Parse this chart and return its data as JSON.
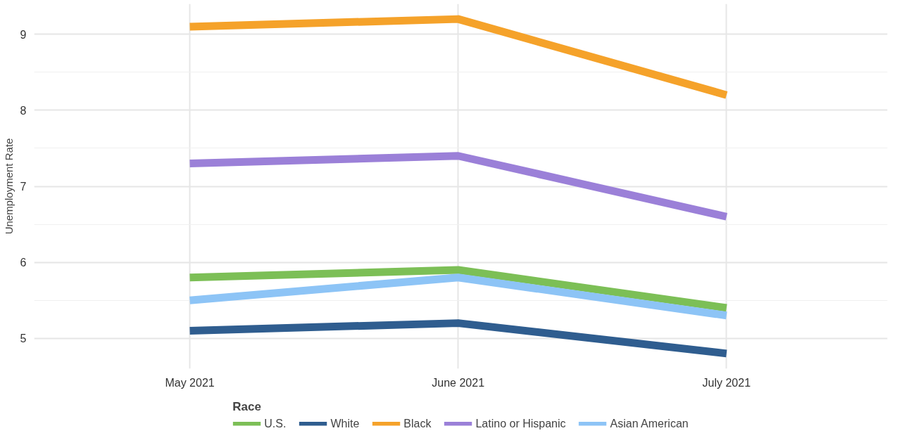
{
  "chart_data": {
    "type": "line",
    "ylabel": "Unemployment Rate",
    "legend_title": "Race",
    "categories": [
      "May 2021",
      "June 2021",
      "July 2021"
    ],
    "series": [
      {
        "name": "U.S.",
        "color": "#7cbf56",
        "values": [
          5.8,
          5.9,
          5.4
        ]
      },
      {
        "name": "White",
        "color": "#2f5d8f",
        "values": [
          5.1,
          5.2,
          4.8
        ]
      },
      {
        "name": "Black",
        "color": "#f5a22a",
        "values": [
          9.1,
          9.2,
          8.2
        ]
      },
      {
        "name": "Latino or Hispanic",
        "color": "#9b80d8",
        "values": [
          7.3,
          7.4,
          6.6
        ]
      },
      {
        "name": "Asian American",
        "color": "#8dc4f6",
        "values": [
          5.5,
          5.8,
          5.3
        ]
      }
    ],
    "ylim": [
      4.6,
      9.4
    ],
    "yticks": [
      5,
      6,
      7,
      8,
      9
    ],
    "grid": true,
    "legend": "bottom",
    "marker": "none",
    "line_style": "solid"
  }
}
